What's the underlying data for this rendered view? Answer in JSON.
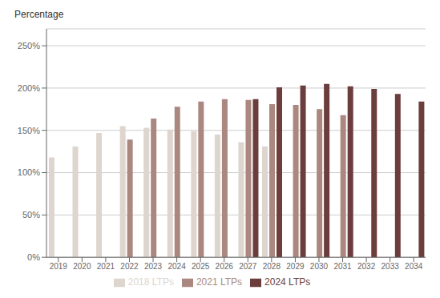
{
  "chart_data": {
    "type": "bar",
    "ylabel": "Percentage",
    "categories": [
      "2019",
      "2020",
      "2021",
      "2022",
      "2023",
      "2024",
      "2025",
      "2026",
      "2027",
      "2028",
      "2029",
      "2030",
      "2031",
      "2032",
      "2033",
      "2034"
    ],
    "series": [
      {
        "name": "2018 LTPs",
        "color": "#ddd5ce",
        "values": [
          118,
          131,
          147,
          155,
          153,
          151,
          149,
          145,
          136,
          131,
          null,
          null,
          null,
          null,
          null,
          null
        ]
      },
      {
        "name": "2021 LTPs",
        "color": "#aa8880",
        "values": [
          null,
          null,
          null,
          139,
          164,
          178,
          184,
          187,
          186,
          181,
          180,
          175,
          168,
          null,
          null,
          null
        ]
      },
      {
        "name": "2024 LTPs",
        "color": "#6b3d3d",
        "values": [
          null,
          null,
          null,
          null,
          null,
          null,
          null,
          null,
          187,
          201,
          203,
          205,
          202,
          199,
          193,
          184
        ]
      }
    ],
    "ylim": [
      0,
      270
    ],
    "yticks": [
      {
        "value": 0,
        "label": "0%"
      },
      {
        "value": 50,
        "label": "50%"
      },
      {
        "value": 100,
        "label": "100%"
      },
      {
        "value": 150,
        "label": "150%"
      },
      {
        "value": 200,
        "label": "200%"
      },
      {
        "value": 250,
        "label": "250%"
      }
    ],
    "grid": true,
    "legend": "bottom"
  }
}
